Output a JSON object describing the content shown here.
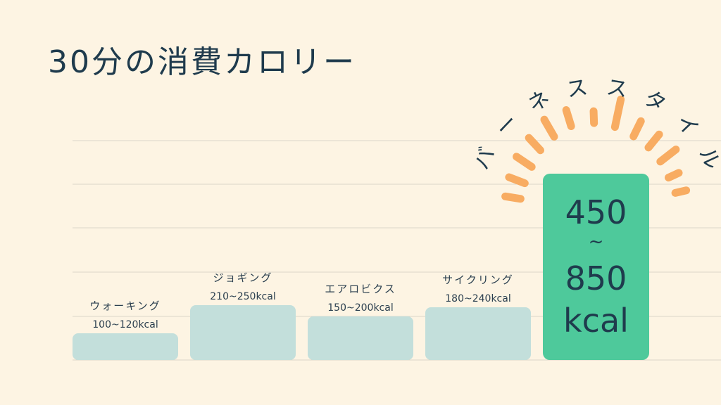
{
  "title": "30分の消費カロリー",
  "brand": "バーネススタイル",
  "colors": {
    "background": "#fdf4e3",
    "bar": "#c3dfdb",
    "highlight": "#4ec99b",
    "rays": "#f8ac62",
    "text": "#1f3b4d",
    "grid": "#dcd6c8"
  },
  "chart_data": {
    "type": "bar",
    "categories": [
      "ウォーキング",
      "ジョギング",
      "エアロビクス",
      "サイクリング",
      "バーネススタイル"
    ],
    "value_labels": [
      "100~120kcal",
      "210~250kcal",
      "150~200kcal",
      "180~240kcal"
    ],
    "ranges": [
      [
        100,
        120
      ],
      [
        210,
        250
      ],
      [
        150,
        200
      ],
      [
        180,
        240
      ],
      [
        450,
        850
      ]
    ],
    "highlight": {
      "index": 4,
      "line1": "450",
      "tilde": "~",
      "line2": "850",
      "unit": "kcal"
    },
    "grid": true,
    "title": "30分の消費カロリー",
    "xlabel": "",
    "ylabel": ""
  }
}
